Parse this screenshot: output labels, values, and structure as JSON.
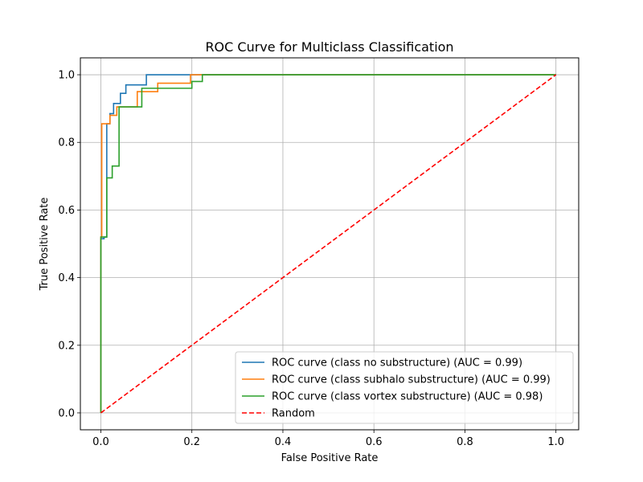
{
  "chart_data": {
    "type": "line",
    "title": "ROC Curve for Multiclass Classification",
    "xlabel": "False Positive Rate",
    "ylabel": "True Positive Rate",
    "xlim": [
      -0.045,
      1.05
    ],
    "ylim": [
      -0.05,
      1.05
    ],
    "xticks": [
      0.0,
      0.2,
      0.4,
      0.6,
      0.8,
      1.0
    ],
    "yticks": [
      0.0,
      0.2,
      0.4,
      0.6,
      0.8,
      1.0
    ],
    "tick_labels_x": [
      "0.0",
      "0.2",
      "0.4",
      "0.6",
      "0.8",
      "1.0"
    ],
    "tick_labels_y": [
      "0.0",
      "0.2",
      "0.4",
      "0.6",
      "0.8",
      "1.0"
    ],
    "grid": true,
    "legend_position": "lower-right",
    "series": [
      {
        "name": "ROC curve (class no substructure) (AUC = 0.99)",
        "color": "#1f77b4",
        "style": "solid",
        "x": [
          0.0,
          0.0,
          0.007,
          0.007,
          0.013,
          0.013,
          0.02,
          0.02,
          0.028,
          0.028,
          0.035,
          0.035,
          0.043,
          0.043,
          0.055,
          0.055,
          0.1,
          0.1,
          0.197,
          0.197,
          1.0
        ],
        "y": [
          0.0,
          0.515,
          0.515,
          0.52,
          0.52,
          0.855,
          0.855,
          0.885,
          0.885,
          0.915,
          0.915,
          0.915,
          0.915,
          0.945,
          0.945,
          0.97,
          0.97,
          1.0,
          1.0,
          1.0,
          1.0
        ]
      },
      {
        "name": "ROC curve (class subhalo substructure) (AUC = 0.99)",
        "color": "#ff7f0e",
        "style": "solid",
        "x": [
          0.0,
          0.0,
          0.002,
          0.002,
          0.02,
          0.02,
          0.035,
          0.035,
          0.08,
          0.08,
          0.125,
          0.125,
          0.197,
          0.197,
          1.0
        ],
        "y": [
          0.0,
          0.52,
          0.52,
          0.855,
          0.855,
          0.88,
          0.88,
          0.905,
          0.905,
          0.95,
          0.95,
          0.975,
          0.975,
          1.0,
          1.0
        ]
      },
      {
        "name": "ROC curve (class vortex substructure) (AUC = 0.98)",
        "color": "#2ca02c",
        "style": "solid",
        "x": [
          0.0,
          0.0,
          0.013,
          0.013,
          0.025,
          0.025,
          0.04,
          0.04,
          0.09,
          0.09,
          0.2,
          0.2,
          0.223,
          0.223,
          1.0
        ],
        "y": [
          0.0,
          0.52,
          0.52,
          0.695,
          0.695,
          0.73,
          0.73,
          0.905,
          0.905,
          0.96,
          0.96,
          0.98,
          0.98,
          1.0,
          1.0
        ]
      },
      {
        "name": "Random",
        "color": "#ff0000",
        "style": "dashed",
        "x": [
          0.0,
          1.0
        ],
        "y": [
          0.0,
          1.0
        ]
      }
    ]
  }
}
